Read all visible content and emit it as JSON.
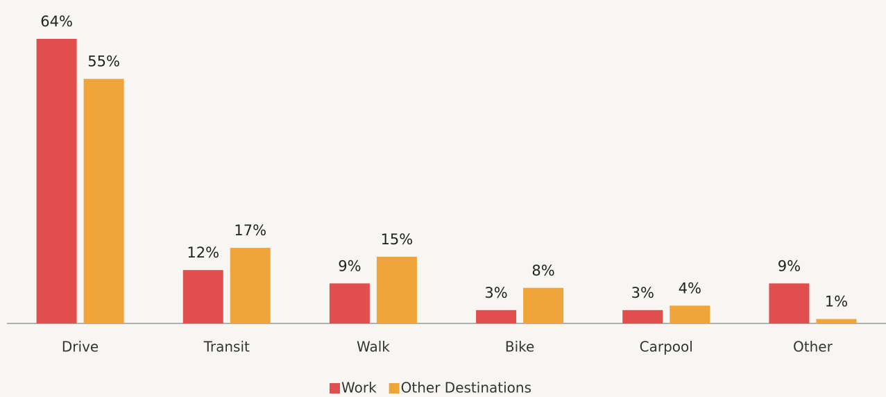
{
  "chart_data": {
    "type": "bar",
    "categories": [
      "Drive",
      "Transit",
      "Walk",
      "Bike",
      "Carpool",
      "Other"
    ],
    "series": [
      {
        "name": "Work",
        "color": "#e04e4e",
        "values": [
          64,
          12,
          9,
          3,
          3,
          9
        ],
        "value_labels": [
          "64%",
          "12%",
          "9%",
          "3%",
          "3%",
          "9%"
        ]
      },
      {
        "name": "Other Destinations",
        "color": "#f0a53a",
        "values": [
          55,
          17,
          15,
          8,
          4,
          1
        ],
        "value_labels": [
          "55%",
          "17%",
          "15%",
          "8%",
          "4%",
          "1%"
        ]
      }
    ],
    "legend": "bottom"
  }
}
